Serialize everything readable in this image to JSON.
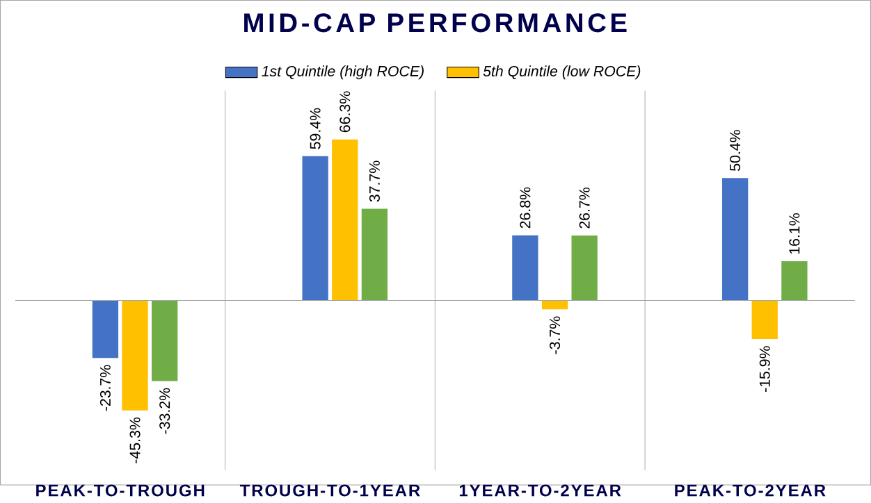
{
  "chart_data": {
    "type": "bar",
    "title": "MID-CAP PERFORMANCE",
    "categories": [
      "PEAK-TO-TROUGH",
      "TROUGH-TO-1YEAR",
      "1YEAR-TO-2YEAR",
      "PEAK-TO-2YEAR"
    ],
    "series": [
      {
        "name": "1st Quintile (high ROCE)",
        "color": "#4472c4",
        "values": [
          -23.7,
          59.4,
          26.8,
          50.4
        ],
        "value_labels": [
          "-23.7%",
          "59.4%",
          "26.8%",
          "50.4%"
        ]
      },
      {
        "name": "5th Quintile  (low ROCE)",
        "color": "#ffc000",
        "values": [
          -45.3,
          66.3,
          -3.7,
          -15.9
        ],
        "value_labels": [
          "-45.3%",
          "66.3%",
          "-3.7%",
          "-15.9%"
        ]
      },
      {
        "color": "#70ad47",
        "values": [
          -33.2,
          37.7,
          26.7,
          16.1
        ],
        "value_labels": [
          "-33.2%",
          "37.7%",
          "26.7%",
          "16.1%"
        ]
      }
    ],
    "grid": "x",
    "legend": "top",
    "tick_labels": "x"
  }
}
